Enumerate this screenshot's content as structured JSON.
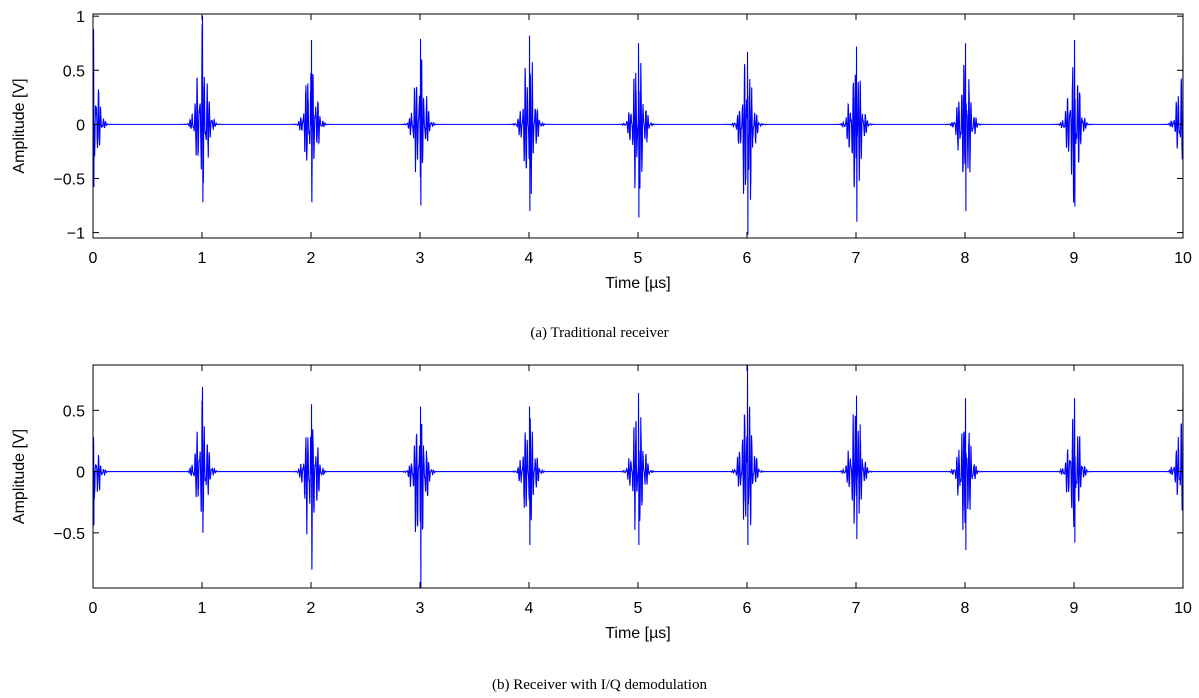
{
  "chart_data": [
    {
      "type": "line",
      "caption": "(a) Traditional receiver",
      "xlabel": "Time [µs]",
      "ylabel": "Amplitude [V]",
      "xlim": [
        0,
        10
      ],
      "ylim": [
        -1.05,
        1.02
      ],
      "xticks": [
        "0",
        "1",
        "2",
        "3",
        "4",
        "5",
        "6",
        "7",
        "8",
        "9",
        "10"
      ],
      "yticks": [
        {
          "value": 1,
          "label": "1"
        },
        {
          "value": 0.5,
          "label": "0.5"
        },
        {
          "value": 0,
          "label": "0"
        },
        {
          "value": -0.5,
          "label": "−0.5"
        },
        {
          "value": -1,
          "label": "−1"
        }
      ],
      "grid": false,
      "line_color": "#0000ff",
      "series": [
        {
          "pulse_period_us": 1.0,
          "pulses": [
            {
              "t": 0.0,
              "peak_pos": 0.88,
              "peak_neg": -0.58
            },
            {
              "t": 1.0,
              "peak_pos": 1.0,
              "peak_neg": -0.72
            },
            {
              "t": 2.0,
              "peak_pos": 0.78,
              "peak_neg": -0.72
            },
            {
              "t": 3.0,
              "peak_pos": 0.79,
              "peak_neg": -0.75
            },
            {
              "t": 4.0,
              "peak_pos": 0.82,
              "peak_neg": -0.8
            },
            {
              "t": 5.0,
              "peak_pos": 0.75,
              "peak_neg": -0.86
            },
            {
              "t": 6.0,
              "peak_pos": 0.67,
              "peak_neg": -1.02
            },
            {
              "t": 7.0,
              "peak_pos": 0.72,
              "peak_neg": -0.9
            },
            {
              "t": 8.0,
              "peak_pos": 0.75,
              "peak_neg": -0.8
            },
            {
              "t": 9.0,
              "peak_pos": 0.78,
              "peak_neg": -0.76
            },
            {
              "t": 10.0,
              "peak_pos": 0.68,
              "peak_neg": -0.52
            }
          ]
        }
      ]
    },
    {
      "type": "line",
      "caption": "(b) Receiver with I/Q demodulation",
      "xlabel": "Time [µs]",
      "ylabel": "Amplitude [V]",
      "xlim": [
        0,
        10
      ],
      "ylim": [
        -0.95,
        0.87
      ],
      "xticks": [
        "0",
        "1",
        "2",
        "3",
        "4",
        "5",
        "6",
        "7",
        "8",
        "9",
        "10"
      ],
      "yticks": [
        {
          "value": 0.5,
          "label": "0.5"
        },
        {
          "value": 0,
          "label": "0"
        },
        {
          "value": -0.5,
          "label": "−0.5"
        }
      ],
      "grid": false,
      "line_color": "#0000ff",
      "series": [
        {
          "pulse_period_us": 1.0,
          "pulses": [
            {
              "t": 0.0,
              "peak_pos": 0.28,
              "peak_neg": -0.44
            },
            {
              "t": 1.0,
              "peak_pos": 0.69,
              "peak_neg": -0.5
            },
            {
              "t": 2.0,
              "peak_pos": 0.55,
              "peak_neg": -0.8
            },
            {
              "t": 3.0,
              "peak_pos": 0.53,
              "peak_neg": -0.95
            },
            {
              "t": 4.0,
              "peak_pos": 0.53,
              "peak_neg": -0.6
            },
            {
              "t": 5.0,
              "peak_pos": 0.64,
              "peak_neg": -0.6
            },
            {
              "t": 6.0,
              "peak_pos": 0.87,
              "peak_neg": -0.6
            },
            {
              "t": 7.0,
              "peak_pos": 0.62,
              "peak_neg": -0.55
            },
            {
              "t": 8.0,
              "peak_pos": 0.6,
              "peak_neg": -0.64
            },
            {
              "t": 9.0,
              "peak_pos": 0.6,
              "peak_neg": -0.58
            },
            {
              "t": 10.0,
              "peak_pos": 0.68,
              "peak_neg": -0.45
            }
          ]
        }
      ]
    }
  ]
}
